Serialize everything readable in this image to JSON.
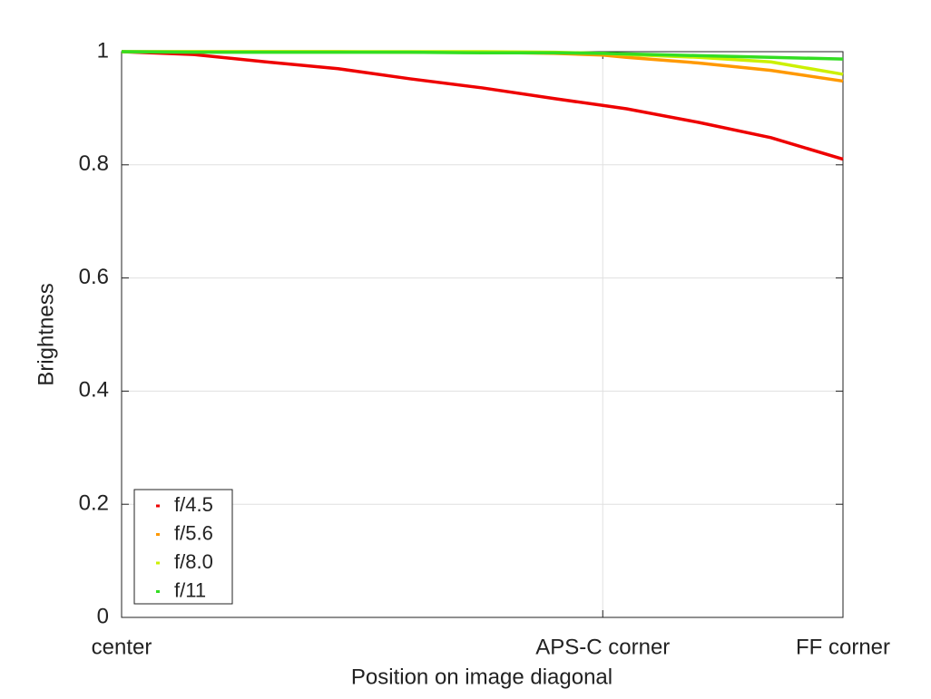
{
  "chart_data": {
    "type": "line",
    "xlabel": "Position on image diagonal",
    "ylabel": "Brightness",
    "x": [
      0,
      0.1,
      0.2,
      0.3,
      0.4,
      0.5,
      0.6,
      0.667,
      0.7,
      0.8,
      0.9,
      1.0
    ],
    "series": [
      {
        "name": "f/4.5",
        "color": "#ee0000",
        "values": [
          1.0,
          0.995,
          0.982,
          0.97,
          0.952,
          0.936,
          0.917,
          0.905,
          0.899,
          0.875,
          0.848,
          0.81
        ]
      },
      {
        "name": "f/5.6",
        "color": "#ff9900",
        "values": [
          1.0,
          1.0,
          1.0,
          1.0,
          0.999,
          0.999,
          0.997,
          0.994,
          0.99,
          0.98,
          0.967,
          0.948
        ]
      },
      {
        "name": "f/8.0",
        "color": "#ccf000",
        "values": [
          1.0,
          1.0,
          1.0,
          1.0,
          1.0,
          1.0,
          0.999,
          0.997,
          0.995,
          0.99,
          0.982,
          0.96
        ]
      },
      {
        "name": "f/11",
        "color": "#33dd22",
        "values": [
          1.0,
          0.999,
          0.999,
          0.999,
          0.999,
          0.998,
          0.998,
          0.997,
          0.996,
          0.993,
          0.99,
          0.987
        ]
      }
    ],
    "xlim": [
      0,
      1
    ],
    "xticks": [
      {
        "value": 0,
        "label": "center"
      },
      {
        "value": 0.667,
        "label": "APS-C corner"
      },
      {
        "value": 1,
        "label": "FF corner"
      }
    ],
    "ylim": [
      0,
      1
    ],
    "yticks": [
      0,
      0.2,
      0.4,
      0.6,
      0.8,
      1
    ],
    "grid": true,
    "legend": "lower left"
  }
}
